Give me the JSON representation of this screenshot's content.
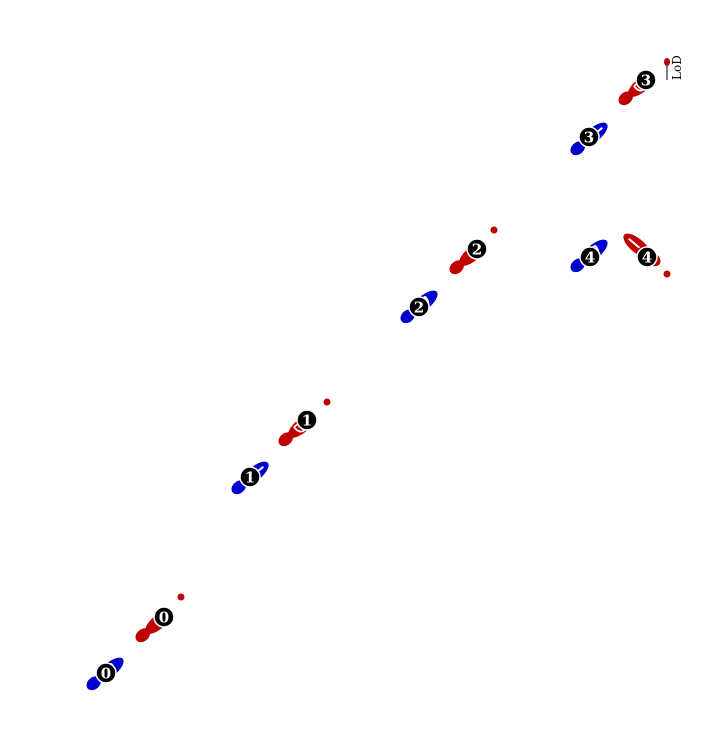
{
  "colors": {
    "left_foot": "#0000cc",
    "right_foot": "#c00000",
    "marker": "#c00000",
    "badge_fill": "#000000",
    "badge_text": "#ffffff"
  },
  "legend": {
    "label": "LoD"
  },
  "steps": [
    {
      "label": "0",
      "left_has_letter": true,
      "right_has_letter": false,
      "marker": true
    },
    {
      "label": "1",
      "left_has_letter": false,
      "right_has_letter": true,
      "marker": true
    },
    {
      "label": "2",
      "left_has_letter": true,
      "right_has_letter": false,
      "marker": true
    },
    {
      "label": "3",
      "left_has_letter": false,
      "right_has_letter": true,
      "marker": false
    },
    {
      "label": "4",
      "left_has_letter": true,
      "right_has_letter": false,
      "marker": true
    }
  ]
}
